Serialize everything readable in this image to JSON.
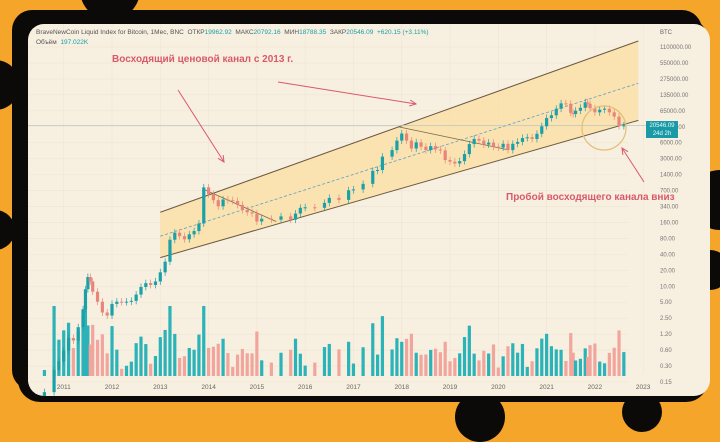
{
  "header": {
    "symbol_line": "BraveNewCoin Liquid Index for Bitcoin, 1Мес, BNC",
    "open_label": "ОТКР",
    "open_value": "19962.92",
    "high_label": "МАКС",
    "high_value": "20792.16",
    "low_label": "МИН",
    "low_value": "18788.35",
    "close_label": "ЗАКР",
    "close_value": "20546.09",
    "change_value": "+620.15 (+3.11%)",
    "volume_label": "Объём",
    "volume_value": "197.022K"
  },
  "annotations": {
    "channel_title": "Восходящий ценовой канал с 2013 г.",
    "breakdown_title": "Пробой восходящего канала вниз"
  },
  "price_tag": {
    "price": "20546.09",
    "countdown": "24d 2h"
  },
  "colors": {
    "up": "#1aa0a8",
    "down": "#e8857a",
    "vol_up": "#2ab3b8",
    "vol_down": "#f2a59c",
    "channel_fill": "#fbdfa8",
    "annotation": "#d85a6a",
    "background": "#f5a52a"
  },
  "chart_data": {
    "type": "candlestick",
    "title": "BraveNewCoin Liquid Index for Bitcoin, 1M, BNC",
    "scale": "log",
    "currency_label": "BTC",
    "y_ticks": [
      "1100000.00",
      "550000.00",
      "275000.00",
      "135000.00",
      "65000.00",
      "29000.00",
      "6000.00",
      "3000.00",
      "1400.00",
      "700.00",
      "340.00",
      "160.00",
      "80.00",
      "40.00",
      "20.00",
      "10.00",
      "5.00",
      "2.50",
      "1.20",
      "0.60",
      "0.30",
      "0.15"
    ],
    "x_ticks": [
      "2011",
      "2012",
      "2013",
      "2014",
      "2015",
      "2016",
      "2017",
      "2018",
      "2019",
      "2020",
      "2021",
      "2022",
      "2023"
    ],
    "last_price": 20546.09,
    "price_line": 20546.09,
    "channel": {
      "start": "2013",
      "upper": [
        [
          2013.0,
          340
        ],
        [
          2022.9,
          1100000
        ]
      ],
      "lower": [
        [
          2013.0,
          40
        ],
        [
          2022.9,
          26000
        ]
      ],
      "mid_dashed": [
        [
          2013.0,
          110
        ],
        [
          2022.9,
          150000
        ]
      ]
    },
    "trend_lines": [
      {
        "from": [
          2013.9,
          1000
        ],
        "to": [
          2015.4,
          220
        ]
      },
      {
        "from": [
          2017.95,
          19000
        ],
        "to": [
          2020.2,
          6500
        ]
      }
    ],
    "monthly_closes_approx": [
      {
        "x": 2010.6,
        "c": 0.07
      },
      {
        "x": 2010.8,
        "c": 0.2
      },
      {
        "x": 2010.9,
        "c": 0.3
      },
      {
        "x": 2011.0,
        "c": 0.5
      },
      {
        "x": 2011.1,
        "c": 0.9
      },
      {
        "x": 2011.2,
        "c": 0.8
      },
      {
        "x": 2011.3,
        "c": 1.5
      },
      {
        "x": 2011.4,
        "c": 3.5
      },
      {
        "x": 2011.45,
        "c": 9
      },
      {
        "x": 2011.5,
        "c": 16
      },
      {
        "x": 2011.55,
        "c": 13
      },
      {
        "x": 2011.6,
        "c": 8
      },
      {
        "x": 2011.7,
        "c": 5
      },
      {
        "x": 2011.8,
        "c": 3
      },
      {
        "x": 2011.9,
        "c": 2.6
      },
      {
        "x": 2012.0,
        "c": 4.5
      },
      {
        "x": 2012.1,
        "c": 5
      },
      {
        "x": 2012.2,
        "c": 4.9
      },
      {
        "x": 2012.3,
        "c": 5
      },
      {
        "x": 2012.4,
        "c": 5.2
      },
      {
        "x": 2012.5,
        "c": 7
      },
      {
        "x": 2012.6,
        "c": 10
      },
      {
        "x": 2012.7,
        "c": 12
      },
      {
        "x": 2012.8,
        "c": 11
      },
      {
        "x": 2012.9,
        "c": 13
      },
      {
        "x": 2013.0,
        "c": 20
      },
      {
        "x": 2013.1,
        "c": 33
      },
      {
        "x": 2013.2,
        "c": 93
      },
      {
        "x": 2013.3,
        "c": 130
      },
      {
        "x": 2013.4,
        "c": 110
      },
      {
        "x": 2013.5,
        "c": 95
      },
      {
        "x": 2013.6,
        "c": 120
      },
      {
        "x": 2013.7,
        "c": 140
      },
      {
        "x": 2013.8,
        "c": 200
      },
      {
        "x": 2013.9,
        "c": 1100
      },
      {
        "x": 2014.0,
        "c": 800
      },
      {
        "x": 2014.1,
        "c": 600
      },
      {
        "x": 2014.2,
        "c": 450
      },
      {
        "x": 2014.3,
        "c": 620
      },
      {
        "x": 2014.4,
        "c": 600
      },
      {
        "x": 2014.5,
        "c": 580
      },
      {
        "x": 2014.6,
        "c": 480
      },
      {
        "x": 2014.7,
        "c": 380
      },
      {
        "x": 2014.8,
        "c": 340
      },
      {
        "x": 2014.9,
        "c": 320
      },
      {
        "x": 2015.0,
        "c": 220
      },
      {
        "x": 2015.1,
        "c": 250
      },
      {
        "x": 2015.3,
        "c": 240
      },
      {
        "x": 2015.5,
        "c": 280
      },
      {
        "x": 2015.7,
        "c": 240
      },
      {
        "x": 2015.8,
        "c": 320
      },
      {
        "x": 2015.9,
        "c": 420
      },
      {
        "x": 2016.0,
        "c": 430
      },
      {
        "x": 2016.2,
        "c": 420
      },
      {
        "x": 2016.4,
        "c": 530
      },
      {
        "x": 2016.5,
        "c": 670
      },
      {
        "x": 2016.7,
        "c": 610
      },
      {
        "x": 2016.9,
        "c": 960
      },
      {
        "x": 2017.0,
        "c": 1000
      },
      {
        "x": 2017.2,
        "c": 1300
      },
      {
        "x": 2017.4,
        "c": 2400
      },
      {
        "x": 2017.5,
        "c": 2500
      },
      {
        "x": 2017.6,
        "c": 4700
      },
      {
        "x": 2017.8,
        "c": 6400
      },
      {
        "x": 2017.9,
        "c": 10000
      },
      {
        "x": 2018.0,
        "c": 14000
      },
      {
        "x": 2018.1,
        "c": 10000
      },
      {
        "x": 2018.2,
        "c": 6900
      },
      {
        "x": 2018.3,
        "c": 9200
      },
      {
        "x": 2018.4,
        "c": 7500
      },
      {
        "x": 2018.5,
        "c": 6400
      },
      {
        "x": 2018.6,
        "c": 7700
      },
      {
        "x": 2018.7,
        "c": 6600
      },
      {
        "x": 2018.8,
        "c": 6300
      },
      {
        "x": 2018.9,
        "c": 4000
      },
      {
        "x": 2019.0,
        "c": 3700
      },
      {
        "x": 2019.1,
        "c": 3400
      },
      {
        "x": 2019.2,
        "c": 3800
      },
      {
        "x": 2019.3,
        "c": 5300
      },
      {
        "x": 2019.4,
        "c": 8500
      },
      {
        "x": 2019.5,
        "c": 10800
      },
      {
        "x": 2019.6,
        "c": 10000
      },
      {
        "x": 2019.7,
        "c": 8300
      },
      {
        "x": 2019.8,
        "c": 9100
      },
      {
        "x": 2019.9,
        "c": 7500
      },
      {
        "x": 2020.0,
        "c": 7200
      },
      {
        "x": 2020.1,
        "c": 8600
      },
      {
        "x": 2020.2,
        "c": 6400
      },
      {
        "x": 2020.3,
        "c": 8600
      },
      {
        "x": 2020.4,
        "c": 9400
      },
      {
        "x": 2020.5,
        "c": 11300
      },
      {
        "x": 2020.6,
        "c": 11700
      },
      {
        "x": 2020.7,
        "c": 10800
      },
      {
        "x": 2020.8,
        "c": 13800
      },
      {
        "x": 2020.9,
        "c": 19700
      },
      {
        "x": 2021.0,
        "c": 29000
      },
      {
        "x": 2021.1,
        "c": 33000
      },
      {
        "x": 2021.2,
        "c": 45000
      },
      {
        "x": 2021.3,
        "c": 58000
      },
      {
        "x": 2021.4,
        "c": 57000
      },
      {
        "x": 2021.5,
        "c": 37000
      },
      {
        "x": 2021.55,
        "c": 35000
      },
      {
        "x": 2021.6,
        "c": 41000
      },
      {
        "x": 2021.7,
        "c": 47000
      },
      {
        "x": 2021.8,
        "c": 61000
      },
      {
        "x": 2021.85,
        "c": 57000
      },
      {
        "x": 2021.9,
        "c": 46000
      },
      {
        "x": 2022.0,
        "c": 38000
      },
      {
        "x": 2022.1,
        "c": 43000
      },
      {
        "x": 2022.2,
        "c": 45000
      },
      {
        "x": 2022.3,
        "c": 38000
      },
      {
        "x": 2022.4,
        "c": 31000
      },
      {
        "x": 2022.5,
        "c": 19900
      },
      {
        "x": 2022.6,
        "c": 20546
      }
    ]
  }
}
